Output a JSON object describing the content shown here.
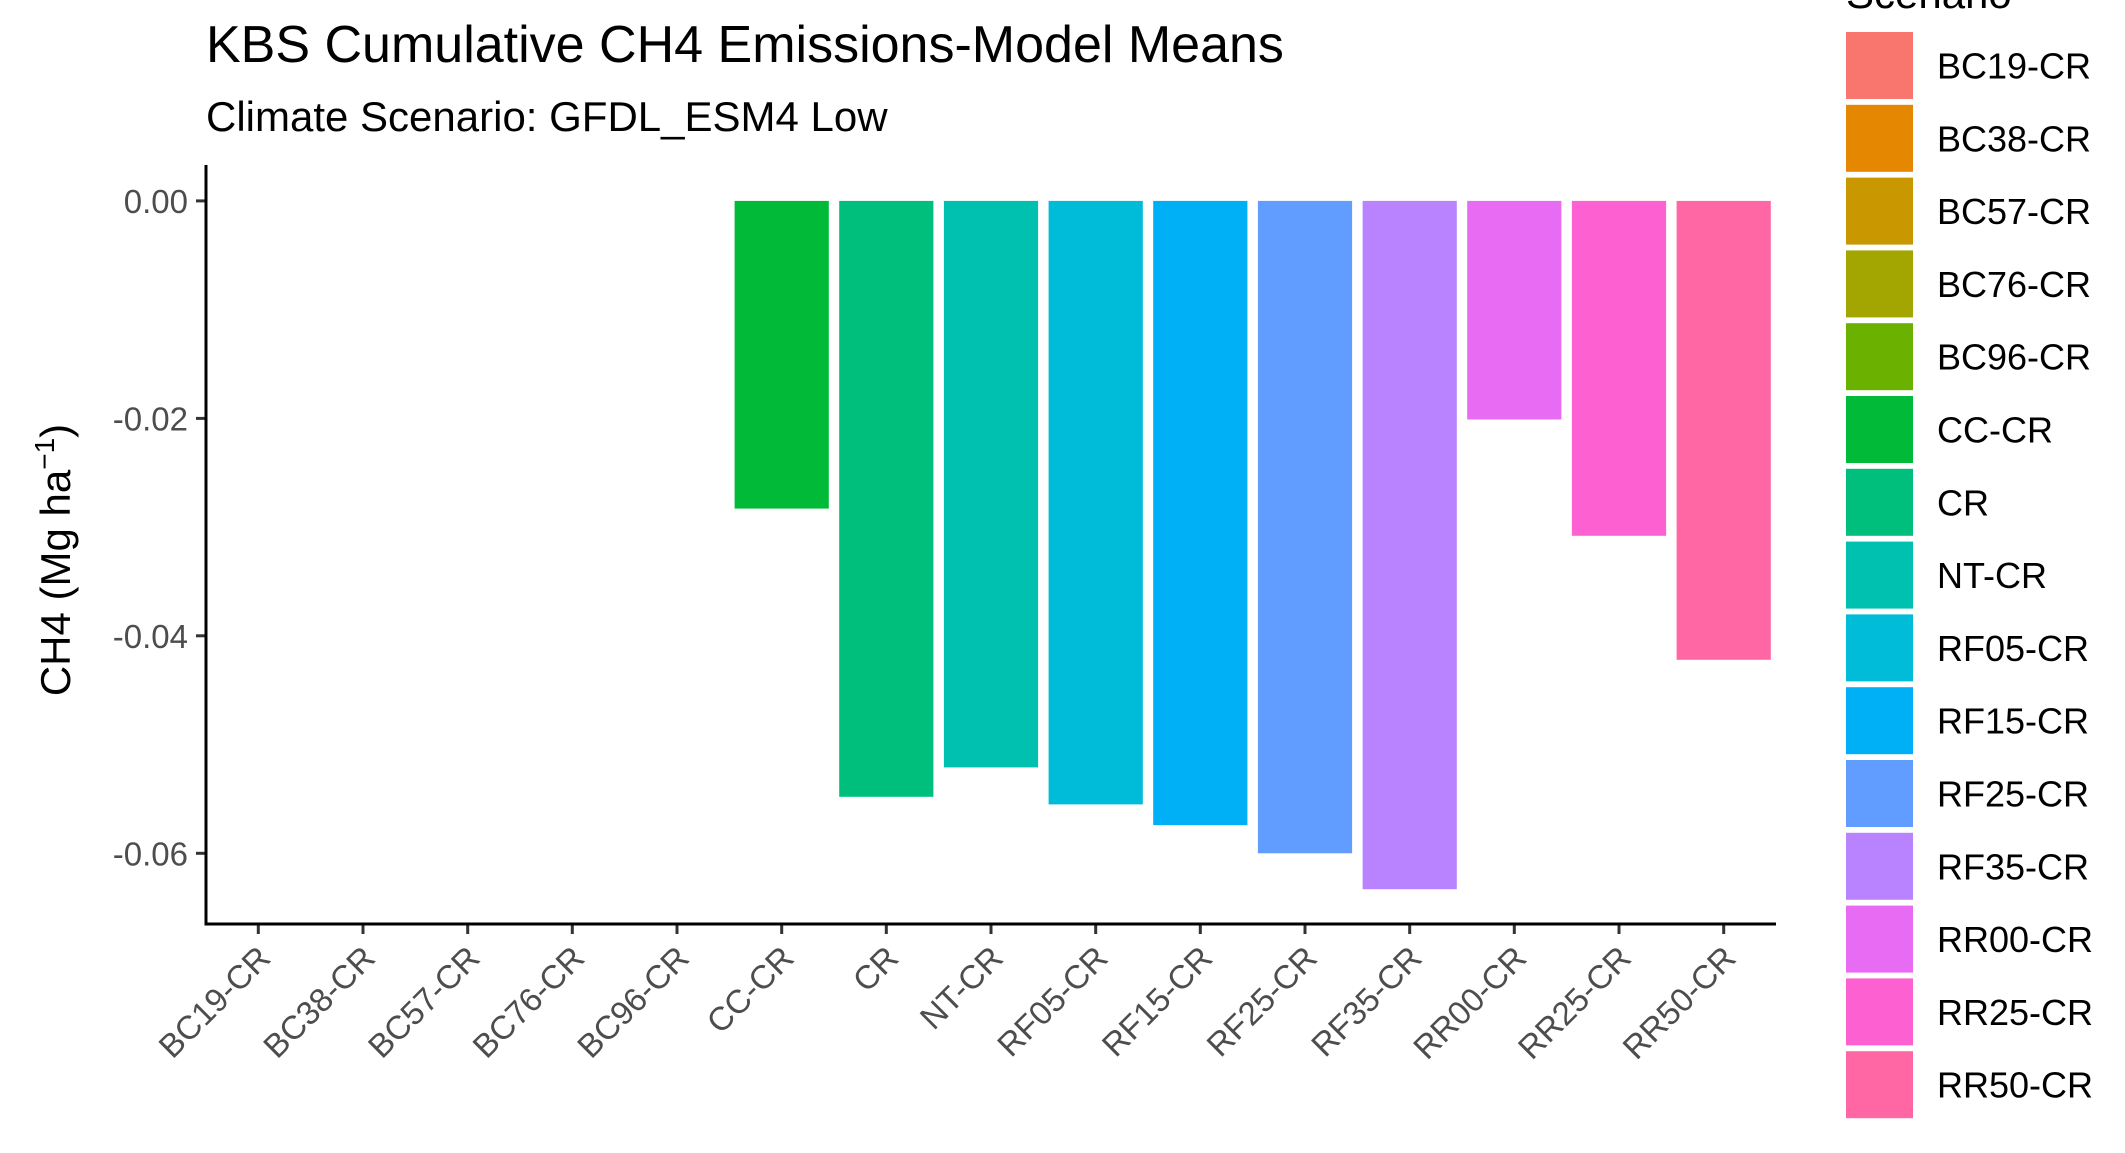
{
  "chart_data": {
    "type": "bar",
    "title": "KBS Cumulative CH4 Emissions-Model Means",
    "subtitle": "Climate Scenario: GFDL_ESM4 Low",
    "ylabel": "CH4 (Mg ha",
    "ylabel_superscript": "−1",
    "ylabel_close": ")",
    "xlabel": "",
    "ylim": [
      -0.0665,
      0.0033
    ],
    "yticks": [
      0.0,
      -0.02,
      -0.04,
      -0.06
    ],
    "ytick_labels": [
      "0.00",
      "-0.02",
      "-0.04",
      "-0.06"
    ],
    "categories": [
      "BC19-CR",
      "BC38-CR",
      "BC57-CR",
      "BC76-CR",
      "BC96-CR",
      "CC-CR",
      "CR",
      "NT-CR",
      "RF05-CR",
      "RF15-CR",
      "RF25-CR",
      "RF35-CR",
      "RR00-CR",
      "RR25-CR",
      "RR50-CR"
    ],
    "values": [
      0,
      0,
      0,
      0,
      0,
      -0.0283,
      -0.0548,
      -0.0521,
      -0.0555,
      -0.0574,
      -0.06,
      -0.0633,
      -0.0201,
      -0.0308,
      -0.0422
    ],
    "colors": [
      "#F8766D",
      "#E58700",
      "#C99800",
      "#A3A500",
      "#6BB100",
      "#00BA38",
      "#00BF7D",
      "#00C0AF",
      "#00BCD8",
      "#00B0F6",
      "#619CFF",
      "#B983FF",
      "#E76BF3",
      "#FD61D1",
      "#FF67A4"
    ],
    "legend": {
      "title": "Scenario",
      "position": "right"
    },
    "grid": false
  }
}
